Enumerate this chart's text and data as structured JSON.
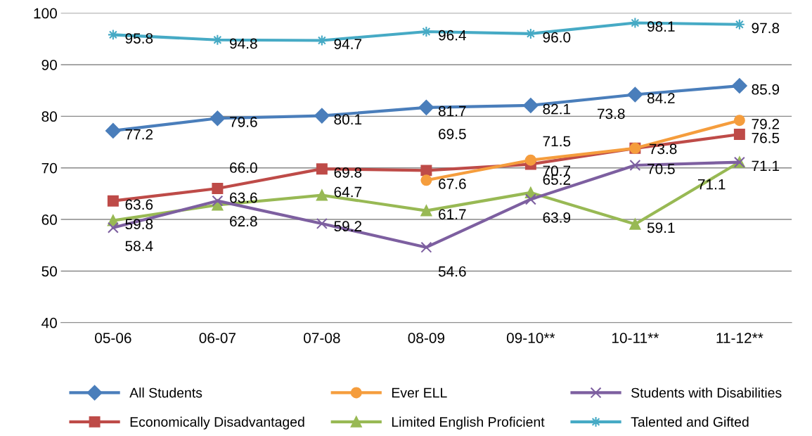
{
  "chart_data": {
    "type": "line",
    "categories": [
      "05-06",
      "06-07",
      "07-08",
      "08-09",
      "09-10**",
      "10-11**",
      "11-12**"
    ],
    "ylim": [
      40,
      100
    ],
    "yticks": [
      40,
      50,
      60,
      70,
      80,
      90,
      100
    ],
    "grid": "y",
    "legend": "bottom",
    "line_style": "solid",
    "series": [
      {
        "name": "All Students",
        "color": "#4a7ebb",
        "marker": "diamond",
        "values": [
          77.2,
          79.6,
          80.1,
          81.7,
          82.1,
          84.2,
          85.9
        ],
        "value_labels": [
          "77.2",
          "79.6",
          "80.1",
          "81.7",
          "82.1",
          "84.2",
          "85.9"
        ]
      },
      {
        "name": "Economically Disadvantaged",
        "color": "#be4b48",
        "marker": "square",
        "values": [
          63.6,
          66.0,
          69.8,
          69.5,
          70.7,
          73.8,
          76.5
        ],
        "value_labels": [
          "63.6",
          "66.0",
          "69.8",
          "69.5",
          "70.7",
          "73.8",
          "76.5"
        ]
      },
      {
        "name": "Ever ELL",
        "color": "#f59d3d",
        "marker": "circle",
        "values": [
          null,
          null,
          null,
          67.6,
          71.5,
          73.8,
          79.2
        ],
        "value_labels": [
          null,
          null,
          null,
          "67.6",
          "71.5",
          "73.8",
          "79.2"
        ]
      },
      {
        "name": "Limited English Proficient",
        "color": "#98b954",
        "marker": "triangle",
        "values": [
          59.8,
          62.8,
          64.7,
          61.7,
          65.2,
          59.1,
          71.1
        ],
        "value_labels": [
          "59.8",
          "62.8",
          "64.7",
          "61.7",
          "65.2",
          "59.1",
          "71.1"
        ]
      },
      {
        "name": "Students with Disabilities",
        "color": "#7d5fa0",
        "marker": "cross",
        "values": [
          58.4,
          63.6,
          59.2,
          54.6,
          63.9,
          70.5,
          71.1
        ],
        "value_labels": [
          "58.4",
          "63.6",
          "59.2",
          "54.6",
          "63.9",
          "70.5",
          "71.1"
        ]
      },
      {
        "name": "Talented and Gifted",
        "color": "#46aac5",
        "marker": "star",
        "values": [
          95.8,
          94.8,
          94.7,
          96.4,
          96.0,
          98.1,
          97.8
        ],
        "value_labels": [
          "95.8",
          "94.8",
          "94.7",
          "96.4",
          "96.0",
          "98.1",
          "97.8"
        ]
      }
    ]
  }
}
